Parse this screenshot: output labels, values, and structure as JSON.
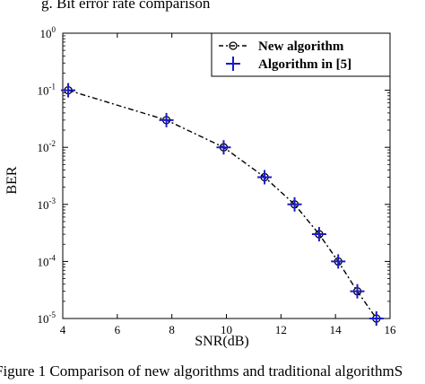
{
  "header_fragment": "g. Bit error rate comparison",
  "caption": "Figure 1 Comparison of new algorithms and traditional algorithmS",
  "chart_data": {
    "type": "line",
    "xlabel": "SNR(dB)",
    "ylabel": "BER",
    "x_ticks": [
      "4",
      "6",
      "8",
      "10",
      "12",
      "14",
      "16"
    ],
    "y_ticks": [
      {
        "base": "10",
        "exp": "0"
      },
      {
        "base": "10",
        "exp": "-1"
      },
      {
        "base": "10",
        "exp": "-2"
      },
      {
        "base": "10",
        "exp": "-3"
      },
      {
        "base": "10",
        "exp": "-4"
      },
      {
        "base": "10",
        "exp": "-5"
      }
    ],
    "xlim": [
      4,
      16
    ],
    "ylim": [
      1e-05,
      1
    ],
    "y_scale": "log",
    "legend_position": "top-right",
    "series": [
      {
        "name": "New algorithm",
        "marker": "circle",
        "line_style": "dash-dot",
        "color": "#000000",
        "x": [
          4.2,
          7.8,
          9.9,
          11.4,
          12.5,
          13.4,
          14.1,
          14.8,
          15.5
        ],
        "y": [
          0.1,
          0.03,
          0.01,
          0.003,
          0.001,
          0.0003,
          0.0001,
          3e-05,
          1e-05
        ]
      },
      {
        "name": "Algorithm in [5]",
        "marker": "plus",
        "line_style": "none",
        "color": "#1a1acc",
        "x": [
          4.2,
          7.8,
          9.9,
          11.4,
          12.5,
          13.4,
          14.1,
          14.8,
          15.5
        ],
        "y": [
          0.1,
          0.03,
          0.01,
          0.003,
          0.001,
          0.0003,
          0.0001,
          3e-05,
          1e-05
        ]
      }
    ]
  }
}
